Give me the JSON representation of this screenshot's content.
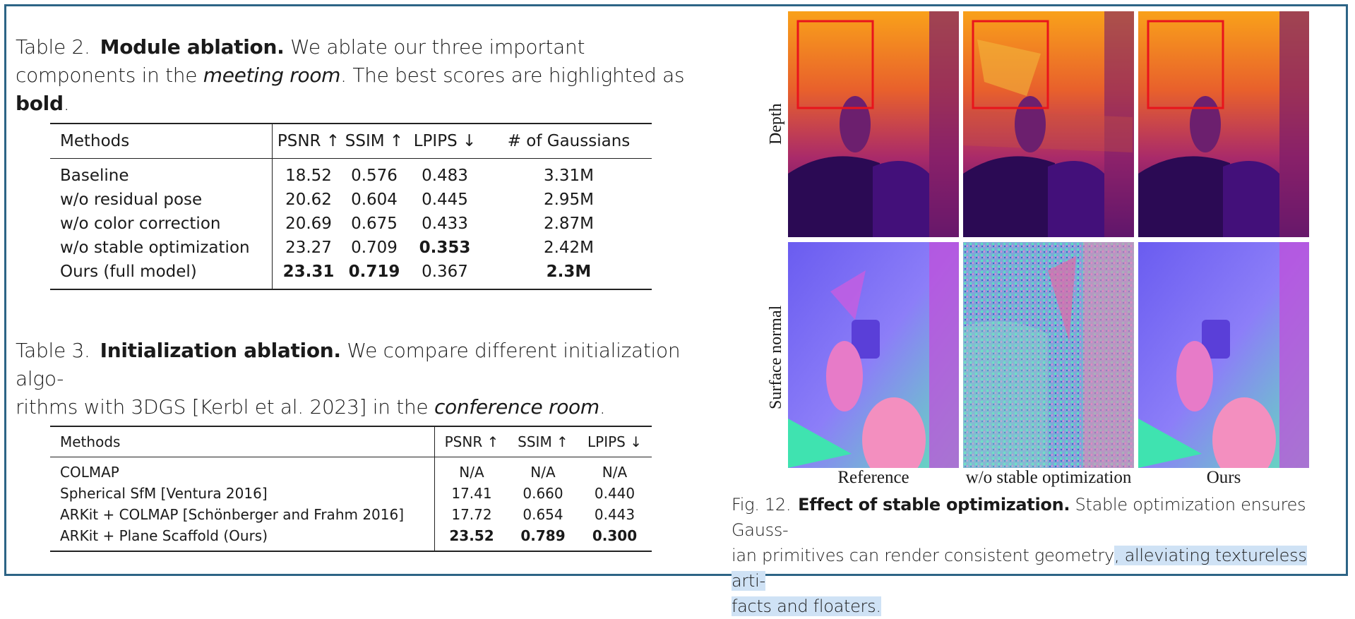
{
  "table2": {
    "label": "Table 2.",
    "title": "Module ablation.",
    "caption_a": "We ablate our three important components in the",
    "caption_em": "meeting room",
    "caption_b": ". The best scores are highlighted as",
    "caption_bold": "bold",
    "caption_c": ".",
    "headers": [
      "Methods",
      "PSNR ↑",
      "SSIM ↑",
      "LPIPS ↓",
      "# of Gaussians"
    ],
    "rows": [
      [
        "Baseline",
        "18.52",
        "0.576",
        "0.483",
        "3.31M"
      ],
      [
        "w/o residual pose",
        "20.62",
        "0.604",
        "0.445",
        "2.95M"
      ],
      [
        "w/o color correction",
        "20.69",
        "0.675",
        "0.433",
        "2.87M"
      ],
      [
        "w/o stable optimization",
        "23.27",
        "0.709",
        "0.353",
        "2.42M"
      ],
      [
        "Ours (full model)",
        "23.31",
        "0.719",
        "0.367",
        "2.3M"
      ]
    ]
  },
  "table3": {
    "label": "Table 3.",
    "title": "Initialization ablation.",
    "caption_a": "We compare different initialization algo-",
    "caption_b": "rithms with 3DGS [Kerbl et al. 2023] in the",
    "caption_em": "conference room",
    "caption_c": ".",
    "headers": [
      "Methods",
      "PSNR ↑",
      "SSIM ↑",
      "LPIPS ↓"
    ],
    "rows": [
      [
        "COLMAP",
        "N/A",
        "N/A",
        "N/A"
      ],
      [
        "Spherical SfM [Ventura 2016]",
        "17.41",
        "0.660",
        "0.440"
      ],
      [
        "ARKit + COLMAP [Schönberger and Frahm 2016]",
        "17.72",
        "0.654",
        "0.443"
      ],
      [
        "ARKit + Plane Scaffold (Ours)",
        "23.52",
        "0.789",
        "0.300"
      ]
    ]
  },
  "figure": {
    "row_labels": [
      "Depth",
      "Surface normal"
    ],
    "col_labels": [
      "Reference",
      "w/o stable optimization",
      "Ours"
    ],
    "label": "Fig. 12.",
    "title": "Effect of stable optimization.",
    "caption_a": "Stable optimization ensures Gauss-",
    "caption_b": "ian primitives can render consistent geometry",
    "caption_hl1": ", alleviating textureless arti-",
    "caption_hl2": "facts and floaters."
  },
  "colors": {
    "frame": "#2d6486",
    "highlight": "#cfe2f5",
    "roi_box": "#e8141c"
  }
}
